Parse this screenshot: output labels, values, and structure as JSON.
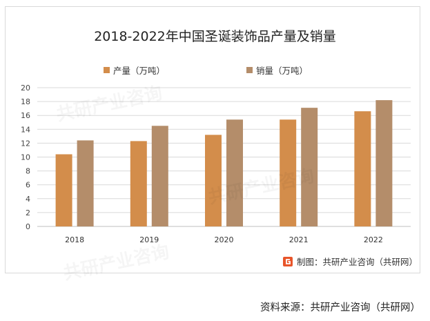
{
  "chart_data": {
    "type": "bar",
    "title": "2018-2022年中国圣诞装饰品产量及销量",
    "categories": [
      "2018",
      "2019",
      "2020",
      "2021",
      "2022"
    ],
    "series": [
      {
        "name": "产量（万吨）",
        "color": "#d38d4b",
        "values": [
          10.4,
          12.3,
          13.2,
          15.4,
          16.6
        ]
      },
      {
        "name": "销量（万吨）",
        "color": "#b48d6a",
        "values": [
          12.4,
          14.5,
          15.4,
          17.1,
          18.2
        ]
      }
    ],
    "ylim": [
      0,
      20
    ],
    "yticks": [
      "0",
      "2",
      "4",
      "6",
      "8",
      "10",
      "12",
      "14",
      "16",
      "18",
      "20"
    ],
    "grid": true,
    "legend_position": "top"
  },
  "credit": {
    "text": "制图：共研产业咨询（共研网）",
    "logo_color": "#e8552a"
  },
  "source": "资料来源：共研产业咨询（共研网）",
  "watermark": {
    "text": "共研产业咨询"
  }
}
